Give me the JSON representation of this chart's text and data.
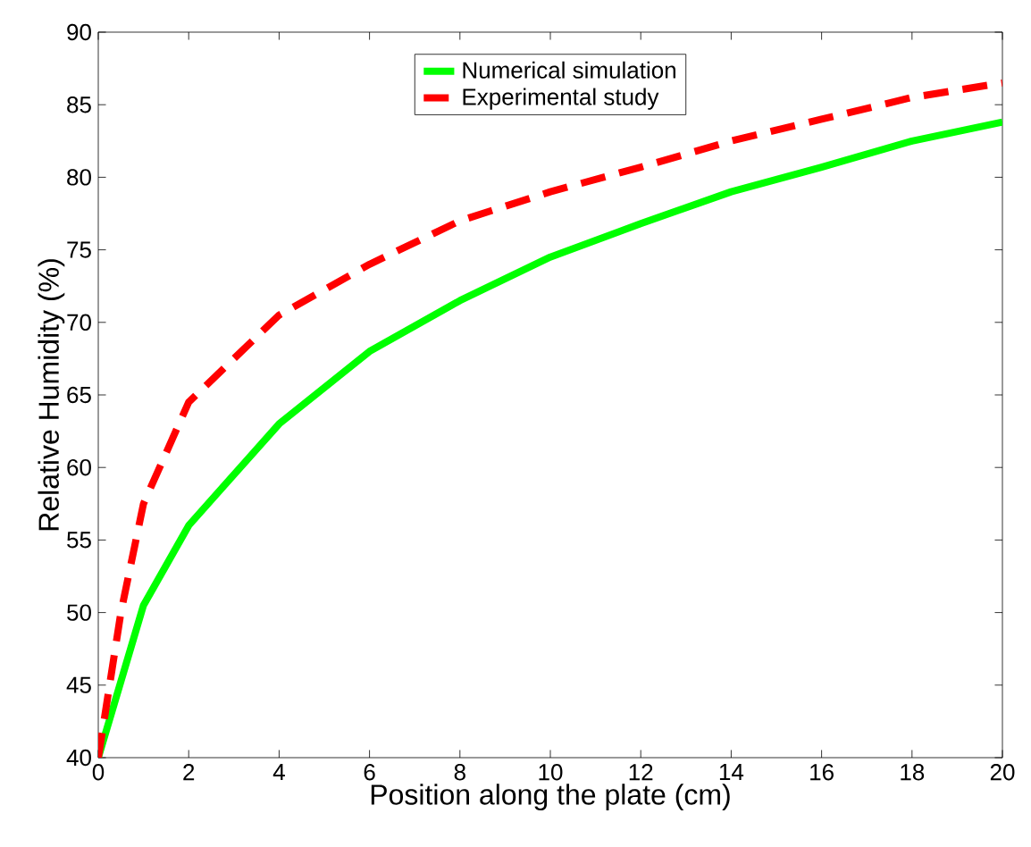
{
  "chart_data": {
    "type": "line",
    "xlabel": "Position along the plate (cm)",
    "ylabel": "Relative Humidity (%)",
    "xlim": [
      0,
      20
    ],
    "ylim": [
      40,
      90
    ],
    "xticks": [
      0,
      2,
      4,
      6,
      8,
      10,
      12,
      14,
      16,
      18,
      20
    ],
    "yticks": [
      40,
      45,
      50,
      55,
      60,
      65,
      70,
      75,
      80,
      85,
      90
    ],
    "legend": "top",
    "grid": false,
    "series": [
      {
        "name": "Numerical simulation",
        "color": "#00ff00",
        "line_style": "solid",
        "x": [
          0,
          1,
          2,
          4,
          6,
          8,
          10,
          12,
          14,
          16,
          18,
          20
        ],
        "values": [
          40,
          50.5,
          56,
          63,
          68,
          71.5,
          74.5,
          76.8,
          79,
          80.7,
          82.5,
          83.8
        ]
      },
      {
        "name": "Experimental study",
        "color": "#ff0000",
        "line_style": "dashed",
        "x": [
          0,
          0.5,
          1,
          2,
          4,
          6,
          8,
          10,
          12,
          14,
          16,
          18,
          20
        ],
        "values": [
          40,
          50,
          57.5,
          64.5,
          70.5,
          74,
          77,
          79,
          80.7,
          82.5,
          84,
          85.5,
          86.5
        ]
      }
    ]
  }
}
